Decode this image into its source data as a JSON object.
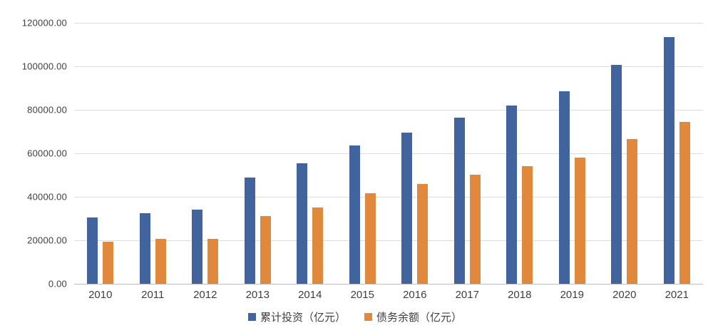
{
  "chart_data": {
    "type": "bar",
    "title": "",
    "categories": [
      "2010",
      "2011",
      "2012",
      "2013",
      "2014",
      "2015",
      "2016",
      "2017",
      "2018",
      "2019",
      "2020",
      "2021"
    ],
    "series": [
      {
        "name": "累计投资（亿元）",
        "color": "#41639e",
        "values": [
          30500,
          32500,
          34000,
          49000,
          55500,
          63500,
          69500,
          76500,
          82000,
          88500,
          100500,
          113500
        ]
      },
      {
        "name": "债务余额（亿元）",
        "color": "#e0883b",
        "values": [
          19500,
          20500,
          20800,
          31300,
          35000,
          41500,
          46000,
          50300,
          54000,
          58200,
          66500,
          74500
        ]
      }
    ],
    "xlabel": "",
    "ylabel": "",
    "ylim": [
      0,
      120000
    ],
    "ytick_step": 20000,
    "ytick_labels": [
      "120000.00",
      "100000.00",
      "80000.00",
      "60000.00",
      "40000.00",
      "20000.00",
      "0.00"
    ],
    "grid": true,
    "legend_position": "bottom",
    "colors": {
      "series1": "#41639e",
      "series2": "#e0883b",
      "gridline": "#dcdcdc"
    }
  }
}
